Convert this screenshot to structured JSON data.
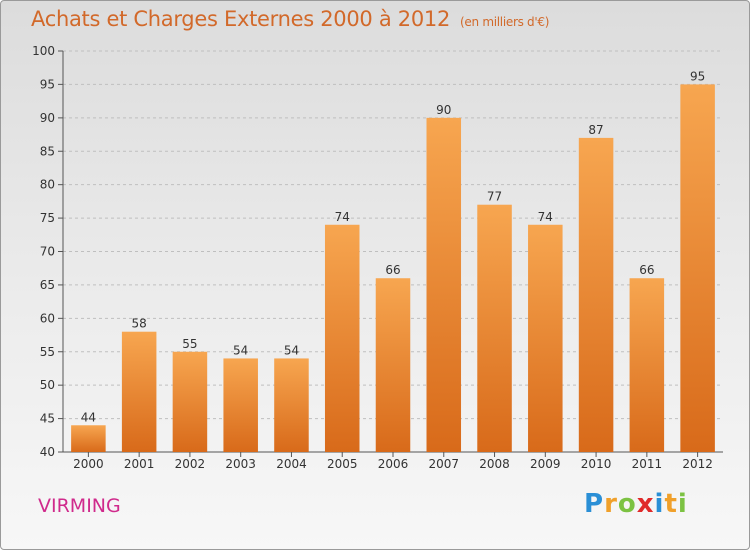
{
  "chart_data": {
    "type": "bar",
    "title": "Achats et Charges Externes 2000 à 2012",
    "subtitle": "(en milliers d'€)",
    "categories": [
      "2000",
      "2001",
      "2002",
      "2003",
      "2004",
      "2005",
      "2006",
      "2007",
      "2008",
      "2009",
      "2010",
      "2011",
      "2012"
    ],
    "values": [
      44,
      58,
      55,
      54,
      54,
      74,
      66,
      90,
      77,
      74,
      87,
      66,
      95
    ],
    "ylim": [
      40,
      100
    ],
    "yticks": [
      40,
      45,
      50,
      55,
      60,
      65,
      70,
      75,
      80,
      85,
      90,
      95,
      100
    ],
    "grid": true,
    "xlabel": "",
    "ylabel": "",
    "bar_color": "#f09a45"
  },
  "commune": "VIRMING",
  "logo": {
    "letters": [
      "P",
      "r",
      "o",
      "x",
      "i",
      "t",
      "i"
    ],
    "colors": [
      "#2a8fd6",
      "#f0a02a",
      "#7cc242",
      "#e02a2a",
      "#2a8fd6",
      "#f0a02a",
      "#7cc242"
    ]
  }
}
